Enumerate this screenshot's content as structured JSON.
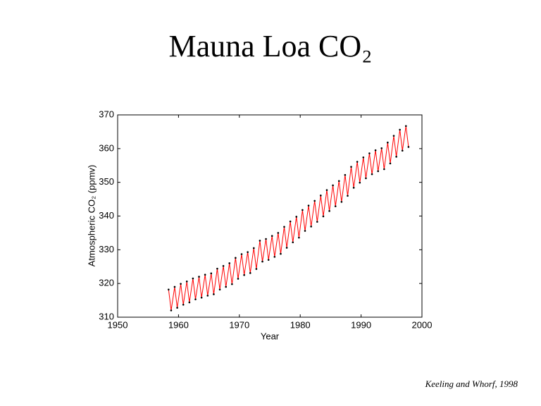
{
  "chart_data": {
    "type": "line",
    "title": "Mauna Loa CO₂",
    "x_label": "Year",
    "y_label": "Atmospheric CO₂ (ppmv)",
    "source": "Keeling and Whorf, 1998",
    "xlim": [
      1950,
      2000
    ],
    "xticks": [
      1950,
      1960,
      1970,
      1980,
      1990,
      2000
    ],
    "ylim": [
      310,
      370
    ],
    "yticks": [
      310,
      320,
      330,
      340,
      350,
      360,
      370
    ],
    "grid": false,
    "series": [
      {
        "color": "#ff0000",
        "marker_color": "#000000",
        "x": [
          1958.37,
          1958.79,
          1959.37,
          1959.79,
          1960.37,
          1960.79,
          1961.37,
          1961.79,
          1962.37,
          1962.79,
          1963.37,
          1963.79,
          1964.37,
          1964.79,
          1965.37,
          1965.79,
          1966.37,
          1966.79,
          1967.37,
          1967.79,
          1968.37,
          1968.79,
          1969.37,
          1969.79,
          1970.37,
          1970.79,
          1971.37,
          1971.79,
          1972.37,
          1972.79,
          1973.37,
          1973.79,
          1974.37,
          1974.79,
          1975.37,
          1975.79,
          1976.37,
          1976.79,
          1977.37,
          1977.79,
          1978.37,
          1978.79,
          1979.37,
          1979.79,
          1980.37,
          1980.79,
          1981.37,
          1981.79,
          1982.37,
          1982.79,
          1983.37,
          1983.79,
          1984.37,
          1984.79,
          1985.37,
          1985.79,
          1986.37,
          1986.79,
          1987.37,
          1987.79,
          1988.37,
          1988.79,
          1989.37,
          1989.79,
          1990.37,
          1990.79,
          1991.37,
          1991.79,
          1992.37,
          1992.79,
          1993.37,
          1993.79,
          1994.37,
          1994.79,
          1995.37,
          1995.79,
          1996.37,
          1996.79,
          1997.37,
          1997.79
        ],
        "values": [
          318.2,
          312.0,
          319.0,
          312.8,
          319.9,
          313.7,
          320.6,
          314.4,
          321.5,
          315.3,
          322.0,
          315.8,
          322.6,
          316.4,
          323.0,
          316.8,
          324.4,
          318.2,
          325.2,
          319.0,
          326.0,
          319.8,
          327.6,
          321.4,
          328.7,
          322.5,
          329.3,
          323.1,
          330.5,
          324.3,
          332.7,
          326.5,
          333.2,
          327.0,
          334.1,
          327.9,
          335.0,
          328.8,
          336.8,
          330.6,
          338.4,
          332.2,
          339.8,
          333.6,
          341.8,
          335.6,
          343.1,
          336.9,
          344.5,
          338.3,
          346.1,
          339.9,
          347.7,
          341.5,
          349.1,
          342.9,
          350.4,
          344.2,
          352.2,
          346.0,
          354.6,
          348.4,
          356.1,
          349.9,
          357.4,
          351.2,
          358.6,
          352.4,
          359.5,
          353.3,
          360.1,
          353.9,
          361.8,
          355.6,
          363.8,
          357.6,
          365.6,
          359.4,
          366.7,
          360.5
        ]
      }
    ]
  }
}
